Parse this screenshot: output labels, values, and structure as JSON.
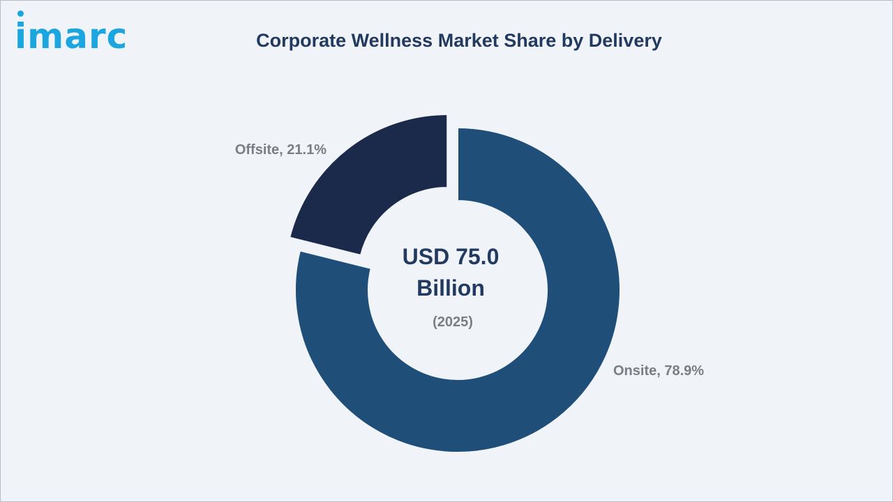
{
  "brand": {
    "logo_text": "imarc",
    "color": "#1ca6e0"
  },
  "chart_data": {
    "type": "pie",
    "style": "donut",
    "title": "Corporate Wellness Market Share by Delivery",
    "categories": [
      "Onsite",
      "Offsite"
    ],
    "values": [
      78.9,
      21.1
    ],
    "unit": "%",
    "labels": [
      "Onsite, 78.9%",
      "Offsite, 21.1%"
    ],
    "colors": [
      "#1f4e78",
      "#1b2a4a"
    ],
    "exploded": "Offsite",
    "center_text": {
      "line1": "USD 75.0",
      "line2": "Billion",
      "line3": "(2025)"
    },
    "legend": "none"
  }
}
